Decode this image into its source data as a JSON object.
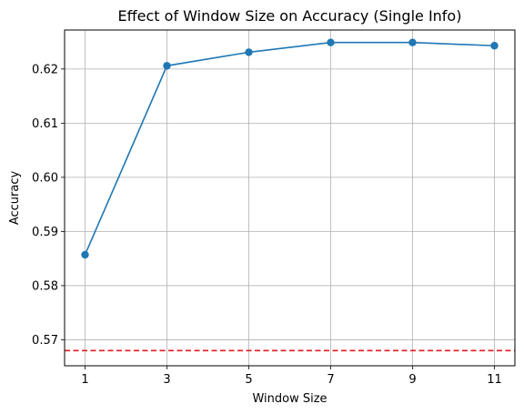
{
  "chart_data": {
    "type": "line",
    "title": "Effect of Window Size on Accuracy (Single Info)",
    "xlabel": "Window Size",
    "ylabel": "Accuracy",
    "x": [
      1,
      3,
      5,
      7,
      9,
      11
    ],
    "x_ticks": [
      "1",
      "3",
      "5",
      "7",
      "9",
      "11"
    ],
    "y_ticks": [
      "0.57",
      "0.58",
      "0.59",
      "0.60",
      "0.61",
      "0.62"
    ],
    "xlim": [
      0.5,
      11.5
    ],
    "ylim": [
      0.5652,
      0.6272
    ],
    "grid": true,
    "series": [
      {
        "values": [
          0.5857,
          0.6206,
          0.6231,
          0.6249,
          0.6249,
          0.6243
        ],
        "color": "#1f77b4",
        "marker": "circle"
      }
    ],
    "reference_line": {
      "y": 0.568,
      "color": "#e31a1c",
      "style": "dashed"
    }
  }
}
